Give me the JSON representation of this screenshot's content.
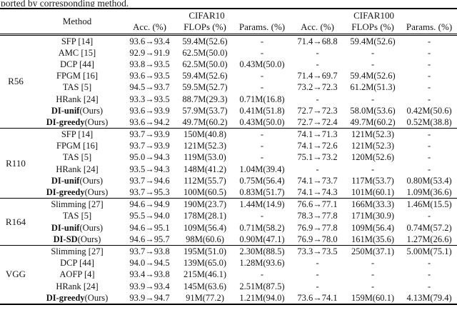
{
  "caption_tail": "ported by corresponding method.",
  "table": {
    "method_header": "Method",
    "dataset_headers": [
      "CIFAR10",
      "CIFAR100"
    ],
    "sub_headers": [
      "Acc. (%)",
      "FLOPs (%)",
      "Params. (%)",
      "Acc. (%)",
      "FLOPs (%)",
      "Params. (%)"
    ],
    "groups": [
      {
        "name": "R56",
        "rows": [
          {
            "method": "SFP [14]",
            "suffix": "",
            "ours": false,
            "values": [
              "93.6→93.4",
              "59.4M(52.6)",
              "-",
              "71.4→68.8",
              "59.4M(52.6)",
              "-"
            ]
          },
          {
            "method": "AMC [15]",
            "suffix": "",
            "ours": false,
            "values": [
              "92.9→91.9",
              "62.5M(50.0)",
              "-",
              "-",
              "-",
              "-"
            ]
          },
          {
            "method": "DCP [44]",
            "suffix": "",
            "ours": false,
            "values": [
              "93.8→93.5",
              "62.5M(50.0)",
              "0.43M(50.0)",
              "-",
              "-",
              "-"
            ]
          },
          {
            "method": "FPGM [16]",
            "suffix": "",
            "ours": false,
            "values": [
              "93.6→93.5",
              "59.4M(52.6)",
              "-",
              "71.4→69.7",
              "59.4M(52.6)",
              "-"
            ]
          },
          {
            "method": "TAS [5]",
            "suffix": "",
            "ours": false,
            "values": [
              "94.5→93.7",
              "59.5M(52.7)",
              "-",
              "73.2→72.3",
              "61.2M(51.3)",
              "-"
            ]
          },
          {
            "method": "HRank [24]",
            "suffix": "",
            "ours": false,
            "values": [
              "93.3→93.5",
              "88.7M(29.3)",
              "0.71M(16.8)",
              "-",
              "-",
              "-"
            ]
          },
          {
            "method": "DI-unif",
            "suffix": "(Ours)",
            "ours": true,
            "values": [
              "93.6→93.9",
              "57.9M(53.7)",
              "0.41M(51.8)",
              "72.7→72.3",
              "58.0M(53.6)",
              "0.42M(50.6)"
            ]
          },
          {
            "method": "DI-greedy",
            "suffix": "(Ours)",
            "ours": true,
            "values": [
              "93.6→94.2",
              "49.7M(60.2)",
              "0.43M(50.0)",
              "72.7→72.4",
              "49.7M(60.2)",
              "0.52M(38.8)"
            ]
          }
        ]
      },
      {
        "name": "R110",
        "rows": [
          {
            "method": "SFP [14]",
            "suffix": "",
            "ours": false,
            "values": [
              "93.7→93.9",
              "150M(40.8)",
              "-",
              "74.1→71.3",
              "121M(52.3)",
              "-"
            ]
          },
          {
            "method": "FPGM [16]",
            "suffix": "",
            "ours": false,
            "values": [
              "93.7→93.9",
              "121M(52.3)",
              "-",
              "74.1→72.6",
              "121M(52.3)",
              "-"
            ]
          },
          {
            "method": "TAS [5]",
            "suffix": "",
            "ours": false,
            "values": [
              "95.0→94.3",
              "119M(53.0)",
              "-",
              "75.1→73.2",
              "120M(52.6)",
              "-"
            ]
          },
          {
            "method": "HRank [24]",
            "suffix": "",
            "ours": false,
            "values": [
              "93.5→94.3",
              "148M(41.2)",
              "1.04M(39.4)",
              "-",
              "-",
              "-"
            ]
          },
          {
            "method": "DI-unif",
            "suffix": "(Ours)",
            "ours": true,
            "values": [
              "93.7→94.6",
              "112M(55.7)",
              "0.75M(56.4)",
              "74.1→73.7",
              "117M(53.7)",
              "0.80M(53.4)"
            ]
          },
          {
            "method": "DI-greedy",
            "suffix": "(Ours)",
            "ours": true,
            "values": [
              "93.7→95.3",
              "100M(60.5)",
              "0.83M(51.7)",
              "74.1→74.3",
              "101M(60.1)",
              "1.09M(36.6)"
            ]
          }
        ]
      },
      {
        "name": "R164",
        "rows": [
          {
            "method": "Slimming [27]",
            "suffix": "",
            "ours": false,
            "values": [
              "94.6→94.9",
              "190M(23.7)",
              "1.44M(14.9)",
              "76.6→77.1",
              "166M(33.3)",
              "1.46M(15.5)"
            ]
          },
          {
            "method": "TAS [5]",
            "suffix": "",
            "ours": false,
            "values": [
              "95.5→94.0",
              "178M(28.1)",
              "-",
              "78.3→77.8",
              "171M(30.9)",
              "-"
            ]
          },
          {
            "method": "DI-unif",
            "suffix": "(Ours)",
            "ours": true,
            "values": [
              "94.6→95.1",
              "109M(56.4)",
              "0.71M(58.2)",
              "76.9→77.8",
              "109M(56.4)",
              "0.74M(57.2)"
            ]
          },
          {
            "method": "DI-SD",
            "suffix": "(Ours)",
            "ours": true,
            "values": [
              "94.6→95.7",
              "98M(60.6)",
              "0.90M(47.1)",
              "76.9→78.0",
              "161M(35.6)",
              "1.27M(26.6)"
            ]
          }
        ]
      },
      {
        "name": "VGG",
        "rows": [
          {
            "method": "Slimming [27]",
            "suffix": "",
            "ours": false,
            "values": [
              "93.7→93.8",
              "195M(51.0)",
              "2.30M(88.5)",
              "73.3→73.5",
              "250M(37.1)",
              "5.00M(75.1)"
            ]
          },
          {
            "method": "DCP [44]",
            "suffix": "",
            "ours": false,
            "values": [
              "94.0→94.5",
              "139M(65.0)",
              "1.28M(93.6)",
              "-",
              "-",
              "-"
            ]
          },
          {
            "method": "AOFP [4]",
            "suffix": "",
            "ours": false,
            "values": [
              "93.4→93.8",
              "215M(46.1)",
              "-",
              "-",
              "-",
              "-"
            ]
          },
          {
            "method": "HRank [24]",
            "suffix": "",
            "ours": false,
            "values": [
              "93.9→93.4",
              "145M(63.6)",
              "2.51M(87.5)",
              "-",
              "-",
              "-"
            ]
          },
          {
            "method": "DI-greedy",
            "suffix": "(Ours)",
            "ours": true,
            "values": [
              "93.9→94.7",
              "91M(77.2)",
              "1.21M(94.0)",
              "73.6→74.1",
              "159M(60.1)",
              "4.13M(79.4)"
            ]
          }
        ]
      }
    ]
  },
  "colors": {
    "text": "#151515",
    "rule": "#000000",
    "background": "#ffffff"
  }
}
